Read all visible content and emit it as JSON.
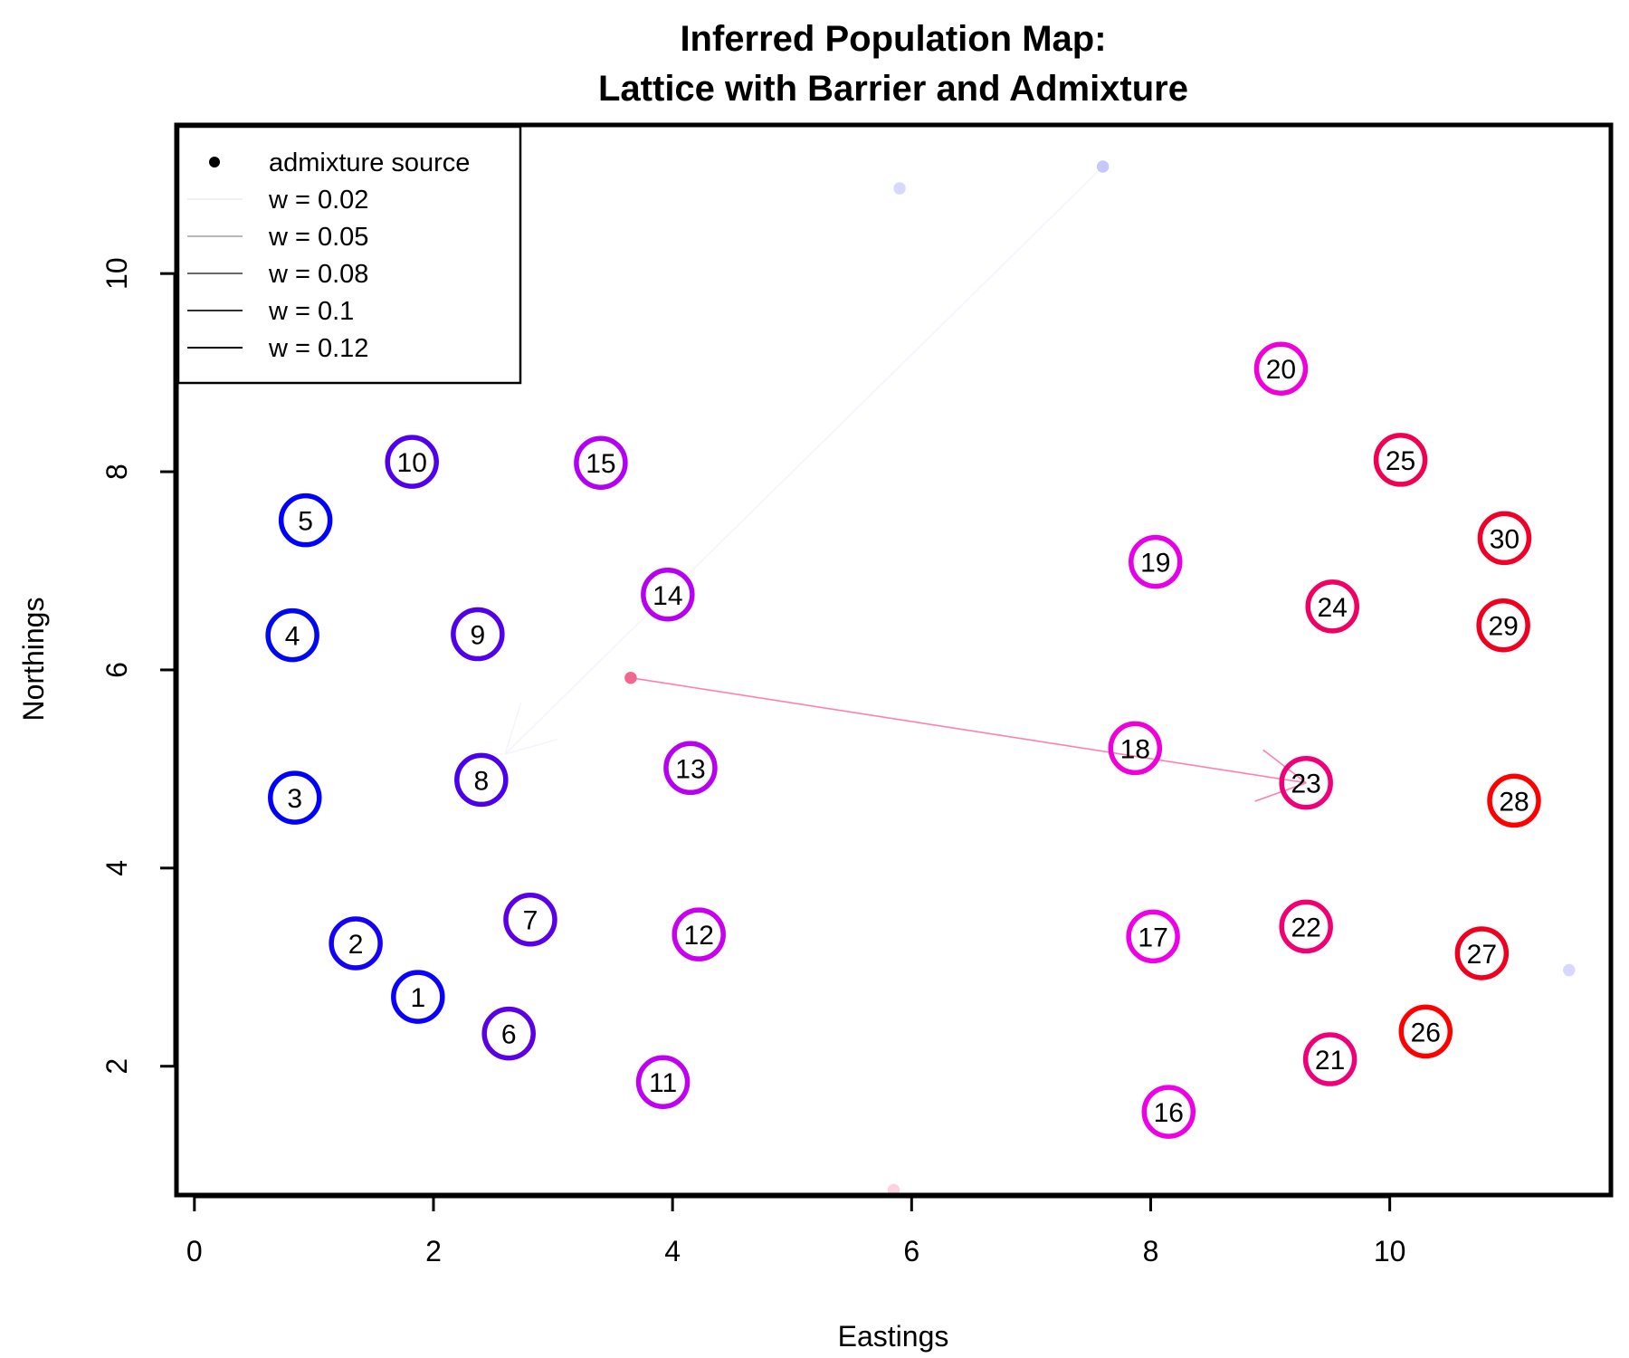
{
  "chart_data": {
    "type": "scatter",
    "title": "Inferred Population Map:\nLattice with Barrier and Admixture",
    "xlabel": "Eastings",
    "ylabel": "Northings",
    "xlim": [
      -0.15,
      11.85
    ],
    "ylim": [
      0.7,
      11.5
    ],
    "x_ticks": [
      0,
      2,
      4,
      6,
      8,
      10
    ],
    "y_ticks": [
      2,
      4,
      6,
      8,
      10
    ],
    "grid": false,
    "legend": {
      "position": "top-left",
      "entries": [
        {
          "label": "admixture source",
          "kind": "point",
          "color": "#000000"
        },
        {
          "label": "w = 0.02",
          "kind": "line",
          "color": "#f0f0f0"
        },
        {
          "label": "w = 0.05",
          "kind": "line",
          "color": "#b8b8b8"
        },
        {
          "label": "w = 0.08",
          "kind": "line",
          "color": "#6a6a6a"
        },
        {
          "label": "w = 0.1",
          "kind": "line",
          "color": "#303030"
        },
        {
          "label": "w = 0.12",
          "kind": "line",
          "color": "#000000"
        }
      ]
    },
    "populations": [
      {
        "label": "1",
        "x": 1.87,
        "y": 2.7,
        "color": "#0a00ff"
      },
      {
        "label": "2",
        "x": 1.35,
        "y": 3.24,
        "color": "#1400f5"
      },
      {
        "label": "3",
        "x": 0.84,
        "y": 4.71,
        "color": "#0000ff"
      },
      {
        "label": "4",
        "x": 0.82,
        "y": 6.35,
        "color": "#0008f0"
      },
      {
        "label": "5",
        "x": 0.93,
        "y": 7.51,
        "color": "#0000ff"
      },
      {
        "label": "6",
        "x": 2.63,
        "y": 2.33,
        "color": "#5a00e6"
      },
      {
        "label": "7",
        "x": 2.81,
        "y": 3.48,
        "color": "#5a00e6"
      },
      {
        "label": "8",
        "x": 2.4,
        "y": 4.89,
        "color": "#4a00ec"
      },
      {
        "label": "9",
        "x": 2.37,
        "y": 6.36,
        "color": "#5000ea"
      },
      {
        "label": "10",
        "x": 1.82,
        "y": 8.1,
        "color": "#5000ea"
      },
      {
        "label": "11",
        "x": 3.92,
        "y": 1.84,
        "color": "#c000f0"
      },
      {
        "label": "12",
        "x": 4.22,
        "y": 3.33,
        "color": "#c800ee"
      },
      {
        "label": "13",
        "x": 4.15,
        "y": 5.01,
        "color": "#b800f0"
      },
      {
        "label": "14",
        "x": 3.96,
        "y": 6.76,
        "color": "#b800f0"
      },
      {
        "label": "15",
        "x": 3.4,
        "y": 8.09,
        "color": "#b400f2"
      },
      {
        "label": "16",
        "x": 8.15,
        "y": 1.54,
        "color": "#ee00e6"
      },
      {
        "label": "17",
        "x": 8.02,
        "y": 3.31,
        "color": "#ee00e6"
      },
      {
        "label": "18",
        "x": 7.87,
        "y": 5.21,
        "color": "#ee00d8"
      },
      {
        "label": "19",
        "x": 8.04,
        "y": 7.09,
        "color": "#e600e6"
      },
      {
        "label": "20",
        "x": 9.09,
        "y": 9.04,
        "color": "#f000d8"
      },
      {
        "label": "21",
        "x": 9.5,
        "y": 2.07,
        "color": "#f00078"
      },
      {
        "label": "22",
        "x": 9.3,
        "y": 3.41,
        "color": "#f00070"
      },
      {
        "label": "23",
        "x": 9.3,
        "y": 4.86,
        "color": "#f00078"
      },
      {
        "label": "24",
        "x": 9.52,
        "y": 6.64,
        "color": "#f00060"
      },
      {
        "label": "25",
        "x": 10.09,
        "y": 8.12,
        "color": "#f00050"
      },
      {
        "label": "26",
        "x": 10.3,
        "y": 2.35,
        "color": "#ff0000"
      },
      {
        "label": "27",
        "x": 10.77,
        "y": 3.14,
        "color": "#f00020"
      },
      {
        "label": "28",
        "x": 11.04,
        "y": 4.68,
        "color": "#ff0000"
      },
      {
        "label": "29",
        "x": 10.95,
        "y": 6.45,
        "color": "#f00020"
      },
      {
        "label": "30",
        "x": 10.96,
        "y": 7.33,
        "color": "#f00028"
      }
    ],
    "admixture_sources": [
      {
        "x": 3.65,
        "y": 5.92,
        "color": "#f06890",
        "target_x": 9.3,
        "target_y": 4.86,
        "line_color": "#ff80b0"
      },
      {
        "x": 7.6,
        "y": 11.08,
        "color": "#c8c8ff",
        "target_x": 2.6,
        "target_y": 5.15,
        "line_color": "#f4f4ff"
      },
      {
        "x": 5.9,
        "y": 10.86,
        "color": "#d8d8ff",
        "target_x": null,
        "target_y": null,
        "line_color": ""
      },
      {
        "x": 5.85,
        "y": 0.75,
        "color": "#ffd0e0",
        "target_x": null,
        "target_y": null,
        "line_color": ""
      },
      {
        "x": 11.5,
        "y": 2.97,
        "color": "#d8d8ff",
        "target_x": null,
        "target_y": null,
        "line_color": ""
      }
    ]
  }
}
